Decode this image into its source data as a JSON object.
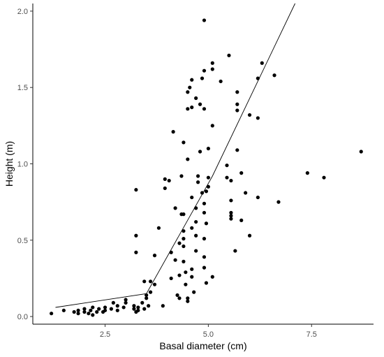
{
  "chart_data": {
    "type": "scatter",
    "xlabel": "Basal diameter (cm)",
    "ylabel": "Height (m)",
    "xlim": [
      0.75,
      9.0
    ],
    "ylim": [
      -0.05,
      2.05
    ],
    "x_ticks": [
      2.5,
      5.0,
      7.5
    ],
    "x_tick_labels": [
      "2.5",
      "5.0",
      "7.5"
    ],
    "y_ticks": [
      0.0,
      0.5,
      1.0,
      1.5,
      2.0
    ],
    "y_tick_labels": [
      "0.0",
      "0.5",
      "1.0",
      "1.5",
      "2.0"
    ],
    "grid": false,
    "axis_lines": "left-bottom",
    "point_color": "#000000",
    "fit_line": {
      "type": "segmented",
      "color": "#000000",
      "points": [
        [
          1.3,
          0.06
        ],
        [
          3.5,
          0.15
        ],
        [
          5.1,
          0.92
        ],
        [
          7.1,
          2.05
        ]
      ]
    },
    "points": [
      [
        1.2,
        0.02
      ],
      [
        1.5,
        0.04
      ],
      [
        1.75,
        0.03
      ],
      [
        1.85,
        0.02
      ],
      [
        1.85,
        0.04
      ],
      [
        2.0,
        0.03
      ],
      [
        2.0,
        0.05
      ],
      [
        2.1,
        0.02
      ],
      [
        2.15,
        0.04
      ],
      [
        2.2,
        0.06
      ],
      [
        2.2,
        0.01
      ],
      [
        2.3,
        0.03
      ],
      [
        2.35,
        0.05
      ],
      [
        2.45,
        0.03
      ],
      [
        2.5,
        0.04
      ],
      [
        2.5,
        0.06
      ],
      [
        2.65,
        0.05
      ],
      [
        2.7,
        0.09
      ],
      [
        2.8,
        0.07
      ],
      [
        2.8,
        0.04
      ],
      [
        2.95,
        0.06
      ],
      [
        3.0,
        0.09
      ],
      [
        3.0,
        0.11
      ],
      [
        3.2,
        0.05
      ],
      [
        3.2,
        0.07
      ],
      [
        3.25,
        0.03
      ],
      [
        3.3,
        0.04
      ],
      [
        3.3,
        0.06
      ],
      [
        3.4,
        0.09
      ],
      [
        3.45,
        0.05
      ],
      [
        3.5,
        0.14
      ],
      [
        3.5,
        0.12
      ],
      [
        3.55,
        0.07
      ],
      [
        3.6,
        0.16
      ],
      [
        3.6,
        0.23
      ],
      [
        3.7,
        0.21
      ],
      [
        3.25,
        0.83
      ],
      [
        3.25,
        0.53
      ],
      [
        3.25,
        0.42
      ],
      [
        3.45,
        0.23
      ],
      [
        3.7,
        0.4
      ],
      [
        3.8,
        0.58
      ],
      [
        3.9,
        0.07
      ],
      [
        3.95,
        0.9
      ],
      [
        3.95,
        0.84
      ],
      [
        4.05,
        0.89
      ],
      [
        4.1,
        0.42
      ],
      [
        4.1,
        0.25
      ],
      [
        4.15,
        1.21
      ],
      [
        4.2,
        0.71
      ],
      [
        4.2,
        0.37
      ],
      [
        4.25,
        0.14
      ],
      [
        4.3,
        0.12
      ],
      [
        4.3,
        0.27
      ],
      [
        4.3,
        0.48
      ],
      [
        4.35,
        0.67
      ],
      [
        4.35,
        0.92
      ],
      [
        4.4,
        1.14
      ],
      [
        4.4,
        0.67
      ],
      [
        4.4,
        0.56
      ],
      [
        4.4,
        0.51
      ],
      [
        4.4,
        0.46
      ],
      [
        4.4,
        0.36
      ],
      [
        4.45,
        0.29
      ],
      [
        4.45,
        0.21
      ],
      [
        4.5,
        0.12
      ],
      [
        4.5,
        0.1
      ],
      [
        4.5,
        1.36
      ],
      [
        4.5,
        1.47
      ],
      [
        4.5,
        1.03
      ],
      [
        4.55,
        1.5
      ],
      [
        4.6,
        1.55
      ],
      [
        4.6,
        1.37
      ],
      [
        4.6,
        0.78
      ],
      [
        4.6,
        0.58
      ],
      [
        4.6,
        0.31
      ],
      [
        4.6,
        0.26
      ],
      [
        4.65,
        0.16
      ],
      [
        4.7,
        1.43
      ],
      [
        4.7,
        0.71
      ],
      [
        4.7,
        0.62
      ],
      [
        4.7,
        0.53
      ],
      [
        4.7,
        0.43
      ],
      [
        4.75,
        0.92
      ],
      [
        4.75,
        0.88
      ],
      [
        4.8,
        1.08
      ],
      [
        4.8,
        1.39
      ],
      [
        4.85,
        1.56
      ],
      [
        4.85,
        0.81
      ],
      [
        4.9,
        1.61
      ],
      [
        4.9,
        1.36
      ],
      [
        4.9,
        0.74
      ],
      [
        4.9,
        0.68
      ],
      [
        4.9,
        0.51
      ],
      [
        4.9,
        0.39
      ],
      [
        4.9,
        0.32
      ],
      [
        4.95,
        0.82
      ],
      [
        4.95,
        0.61
      ],
      [
        4.95,
        0.22
      ],
      [
        5.0,
        1.1
      ],
      [
        5.0,
        0.91
      ],
      [
        5.0,
        0.85
      ],
      [
        5.1,
        1.62
      ],
      [
        5.1,
        1.66
      ],
      [
        5.1,
        1.25
      ],
      [
        5.1,
        0.26
      ],
      [
        4.9,
        1.94
      ],
      [
        5.3,
        1.54
      ],
      [
        5.45,
        0.99
      ],
      [
        5.45,
        0.91
      ],
      [
        5.5,
        1.71
      ],
      [
        5.55,
        0.76
      ],
      [
        5.55,
        0.89
      ],
      [
        5.55,
        0.68
      ],
      [
        5.55,
        0.66
      ],
      [
        5.55,
        0.64
      ],
      [
        5.65,
        0.43
      ],
      [
        5.7,
        1.47
      ],
      [
        5.7,
        1.39
      ],
      [
        5.7,
        1.35
      ],
      [
        5.7,
        1.09
      ],
      [
        5.8,
        0.94
      ],
      [
        5.8,
        0.63
      ],
      [
        5.9,
        0.81
      ],
      [
        6.0,
        1.32
      ],
      [
        6.0,
        0.53
      ],
      [
        6.2,
        1.3
      ],
      [
        6.2,
        0.78
      ],
      [
        6.2,
        1.56
      ],
      [
        6.3,
        1.66
      ],
      [
        6.6,
        1.58
      ],
      [
        6.7,
        0.75
      ],
      [
        7.4,
        0.94
      ],
      [
        7.8,
        0.91
      ],
      [
        8.7,
        1.08
      ]
    ]
  }
}
